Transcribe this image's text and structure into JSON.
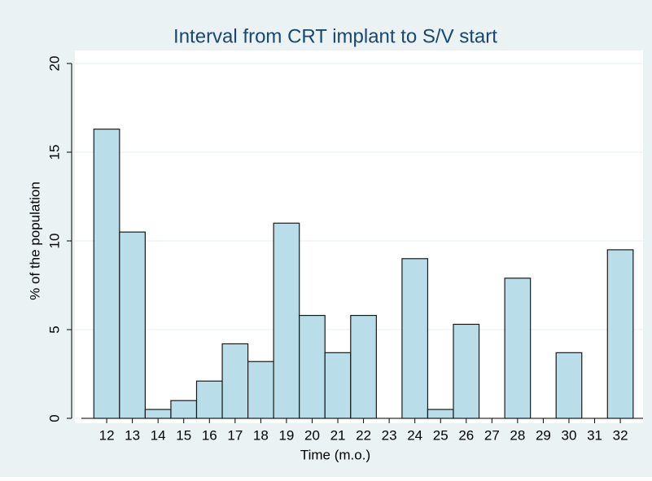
{
  "chart_data": {
    "type": "bar",
    "title": "Interval from CRT implant to S/V start",
    "x_label": "Time (m.o.)",
    "y_label": "% of the population",
    "categories": [
      12,
      13,
      14,
      15,
      16,
      17,
      18,
      19,
      20,
      21,
      22,
      23,
      24,
      25,
      26,
      27,
      28,
      29,
      30,
      31,
      32
    ],
    "values": [
      16.3,
      10.5,
      0.5,
      1.0,
      2.1,
      4.2,
      3.2,
      11.0,
      5.8,
      3.7,
      5.8,
      0,
      9.0,
      0.5,
      5.3,
      0,
      7.9,
      0,
      3.7,
      0,
      9.5
    ],
    "color": "#b9dde9",
    "ylim": [
      0,
      20
    ],
    "yticks": [
      0,
      5,
      10,
      15,
      20
    ],
    "grid": true
  }
}
